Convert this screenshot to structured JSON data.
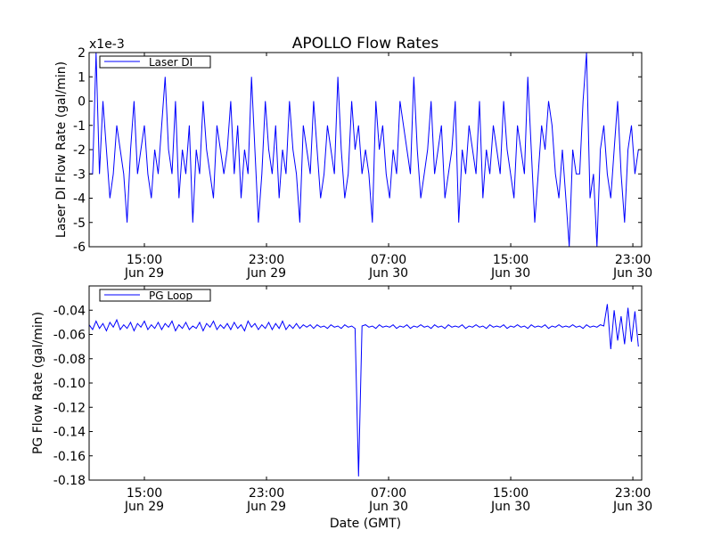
{
  "chart_data": [
    {
      "type": "line",
      "title": "APOLLO Flow Rates",
      "ylabel": "Laser DI Flow Rate (gal/min)",
      "xlabel": "",
      "y_multiplier": "x1e-3",
      "legend": {
        "label": "Laser DI",
        "placement": "top-left"
      },
      "color": "#0000ff",
      "xlim_hours": [
        11.38,
        47.58
      ],
      "ylim": [
        -6,
        2
      ],
      "yticks": [
        2,
        1,
        0,
        -1,
        -2,
        -3,
        -4,
        -5,
        -6
      ],
      "xticks": [
        {
          "h": 15,
          "time": "15:00",
          "date": "Jun 29"
        },
        {
          "h": 23,
          "time": "23:00",
          "date": "Jun 29"
        },
        {
          "h": 31,
          "time": "07:00",
          "date": "Jun 30"
        },
        {
          "h": 39,
          "time": "15:00",
          "date": "Jun 30"
        },
        {
          "h": 47,
          "time": "23:00",
          "date": "Jun 30"
        }
      ],
      "x_start_hours": 11.38,
      "x_step_hours": 0.2263,
      "values": [
        -3,
        -3,
        2,
        -3,
        0,
        -2,
        -4,
        -3,
        -1,
        -2,
        -3,
        -5,
        -2,
        0,
        -3,
        -2,
        -1,
        -3,
        -4,
        -2,
        -3,
        -1,
        1,
        -2,
        -3,
        0,
        -4,
        -2,
        -3,
        -1,
        -5,
        -2,
        -3,
        0,
        -2,
        -3,
        -4,
        -1,
        -2,
        -3,
        -2,
        0,
        -3,
        -1,
        -4,
        -2,
        -3,
        1,
        -2,
        -5,
        -3,
        0,
        -2,
        -3,
        -1,
        -4,
        -2,
        -3,
        0,
        -2,
        -3,
        -5,
        -1,
        -2,
        -3,
        0,
        -2,
        -4,
        -3,
        -1,
        -2,
        -3,
        1,
        -2,
        -4,
        -3,
        0,
        -2,
        -1,
        -3,
        -2,
        -3,
        -5,
        0,
        -2,
        -1,
        -3,
        -4,
        -2,
        -3,
        0,
        -1,
        -2,
        -3,
        1,
        -2,
        -4,
        -3,
        -2,
        0,
        -3,
        -2,
        -1,
        -4,
        -3,
        -2,
        0,
        -5,
        -2,
        -3,
        -1,
        -2,
        -3,
        0,
        -4,
        -2,
        -3,
        -1,
        -2,
        -3,
        0,
        -2,
        -3,
        -4,
        -1,
        -2,
        -3,
        1,
        -2,
        -5,
        -3,
        -1,
        -2,
        0,
        -1,
        -3,
        -4,
        -2,
        -4,
        -6,
        -2,
        -3,
        -3,
        0,
        2,
        -4,
        -3,
        -6,
        -2,
        -1,
        -3,
        -4,
        -2,
        0,
        -3,
        -5,
        -2,
        -1,
        -3,
        -2
      ]
    },
    {
      "type": "line",
      "ylabel": "PG Flow Rate (gal/min)",
      "xlabel": "Date (GMT)",
      "legend": {
        "label": "PG Loop",
        "placement": "top-left"
      },
      "color": "#0000ff",
      "xlim_hours": [
        11.38,
        47.58
      ],
      "ylim": [
        -0.18,
        -0.02
      ],
      "yticks": [
        -0.04,
        -0.06,
        -0.08,
        -0.1,
        -0.12,
        -0.14,
        -0.16,
        -0.18
      ],
      "ytick_labels": [
        "-0.04",
        "-0.06",
        "-0.08",
        "-0.10",
        "-0.12",
        "-0.14",
        "-0.16",
        "-0.18"
      ],
      "xticks": [
        {
          "h": 15,
          "time": "15:00",
          "date": "Jun 29"
        },
        {
          "h": 23,
          "time": "23:00",
          "date": "Jun 29"
        },
        {
          "h": 31,
          "time": "07:00",
          "date": "Jun 30"
        },
        {
          "h": 39,
          "time": "15:00",
          "date": "Jun 30"
        },
        {
          "h": 47,
          "time": "23:00",
          "date": "Jun 30"
        }
      ],
      "x_start_hours": 11.38,
      "x_step_hours": 0.2263,
      "values": [
        -0.052,
        -0.056,
        -0.049,
        -0.055,
        -0.051,
        -0.057,
        -0.05,
        -0.054,
        -0.048,
        -0.056,
        -0.052,
        -0.055,
        -0.05,
        -0.057,
        -0.051,
        -0.054,
        -0.049,
        -0.056,
        -0.052,
        -0.055,
        -0.05,
        -0.056,
        -0.051,
        -0.054,
        -0.049,
        -0.057,
        -0.052,
        -0.055,
        -0.05,
        -0.056,
        -0.053,
        -0.055,
        -0.05,
        -0.057,
        -0.051,
        -0.054,
        -0.049,
        -0.056,
        -0.052,
        -0.055,
        -0.051,
        -0.056,
        -0.05,
        -0.055,
        -0.052,
        -0.057,
        -0.049,
        -0.054,
        -0.051,
        -0.056,
        -0.052,
        -0.055,
        -0.05,
        -0.056,
        -0.051,
        -0.055,
        -0.049,
        -0.056,
        -0.052,
        -0.055,
        -0.051,
        -0.055,
        -0.052,
        -0.054,
        -0.052,
        -0.055,
        -0.052,
        -0.054,
        -0.053,
        -0.055,
        -0.052,
        -0.054,
        -0.053,
        -0.055,
        -0.052,
        -0.054,
        -0.053,
        -0.055,
        -0.177,
        -0.053,
        -0.052,
        -0.054,
        -0.053,
        -0.055,
        -0.052,
        -0.054,
        -0.053,
        -0.054,
        -0.052,
        -0.055,
        -0.053,
        -0.054,
        -0.052,
        -0.055,
        -0.053,
        -0.054,
        -0.052,
        -0.054,
        -0.053,
        -0.055,
        -0.052,
        -0.054,
        -0.053,
        -0.055,
        -0.052,
        -0.054,
        -0.053,
        -0.054,
        -0.052,
        -0.055,
        -0.053,
        -0.054,
        -0.052,
        -0.054,
        -0.053,
        -0.055,
        -0.052,
        -0.054,
        -0.053,
        -0.054,
        -0.052,
        -0.055,
        -0.053,
        -0.054,
        -0.052,
        -0.054,
        -0.053,
        -0.055,
        -0.052,
        -0.054,
        -0.053,
        -0.054,
        -0.052,
        -0.055,
        -0.053,
        -0.054,
        -0.052,
        -0.054,
        -0.053,
        -0.054,
        -0.052,
        -0.054,
        -0.053,
        -0.055,
        -0.052,
        -0.054,
        -0.053,
        -0.054,
        -0.052,
        -0.053,
        -0.035,
        -0.072,
        -0.04,
        -0.065,
        -0.045,
        -0.068,
        -0.038,
        -0.066,
        -0.041,
        -0.07
      ]
    }
  ]
}
